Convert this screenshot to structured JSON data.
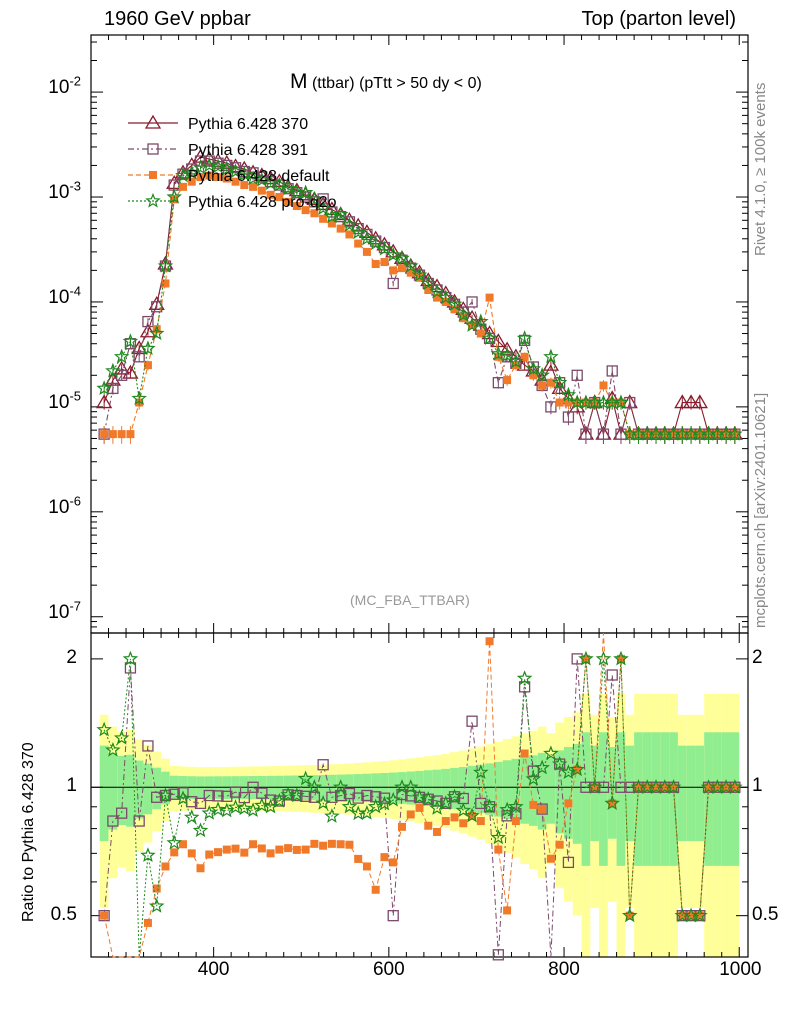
{
  "header": {
    "left": "1960 GeV ppbar",
    "right": "Top (parton level)",
    "rivet": "Rivet 4.1.0, ≥ 100k events",
    "mcplots": "mcplots.cern.ch [arXiv:2401.10621]",
    "watermark": "(MC_FBA_TTBAR)"
  },
  "colors": {
    "s370": "#8b1a2b",
    "s391": "#7b4a6a",
    "default": "#f07a2a",
    "proq2o": "#1e8a1e",
    "band_inner": "#90ee90",
    "band_outer": "#ffff99"
  },
  "chart_data": {
    "type": "line",
    "title_main": "M",
    "title_sub": "(ttbar) (pTtt > 50 dy < 0)",
    "xlabel": "",
    "ylabel": "",
    "ratio_ylabel": "Ratio to Pythia 6.428 370",
    "xlim": [
      260,
      1010
    ],
    "ylim": [
      7e-08,
      0.035
    ],
    "ratio_ylim": [
      0.4,
      2.3
    ],
    "xticks": [
      400,
      600,
      800,
      1000
    ],
    "yticks_main": [
      {
        "base": "10",
        "exp": "-2",
        "value": 0.01
      },
      {
        "base": "10",
        "exp": "-3",
        "value": 0.001
      },
      {
        "base": "10",
        "exp": "-4",
        "value": 0.0001
      },
      {
        "base": "10",
        "exp": "-5",
        "value": 1e-05
      },
      {
        "base": "10",
        "exp": "-6",
        "value": 1e-06
      },
      {
        "base": "10",
        "exp": "-7",
        "value": 1e-07
      }
    ],
    "yticks_ratio": [
      {
        "label": "0.5",
        "value": 0.5
      },
      {
        "label": "1",
        "value": 1
      },
      {
        "label": "2",
        "value": 2
      }
    ],
    "legend": [
      {
        "label": "Pythia 6.428 370",
        "key": "s370"
      },
      {
        "label": "Pythia 6.428 391",
        "key": "s391"
      },
      {
        "label": "Pythia 6.428 default",
        "key": "default"
      },
      {
        "label": "Pythia 6.428 pro-q2o",
        "key": "proq2o"
      }
    ],
    "x": [
      275,
      285,
      295,
      305,
      315,
      325,
      335,
      345,
      355,
      365,
      375,
      385,
      395,
      405,
      415,
      425,
      435,
      445,
      455,
      465,
      475,
      485,
      495,
      505,
      515,
      525,
      535,
      545,
      555,
      565,
      575,
      585,
      595,
      605,
      615,
      625,
      635,
      645,
      655,
      665,
      675,
      685,
      695,
      705,
      715,
      725,
      735,
      745,
      755,
      765,
      775,
      785,
      795,
      805,
      815,
      825,
      835,
      845,
      855,
      865,
      875,
      885,
      895,
      905,
      915,
      925,
      935,
      945,
      955,
      965,
      975,
      985,
      995
    ],
    "series": [
      {
        "name": "Pythia 6.428 370",
        "key": "s370",
        "values": [
          1.1e-05,
          1.8e-05,
          2.3e-05,
          2.1e-05,
          3.6e-05,
          5.2e-05,
          9.5e-05,
          0.00023,
          0.00135,
          0.0017,
          0.002,
          0.0024,
          0.0023,
          0.0022,
          0.0021,
          0.00195,
          0.00185,
          0.0017,
          0.0016,
          0.0015,
          0.0014,
          0.00125,
          0.00115,
          0.00105,
          0.00095,
          0.00085,
          0.00076,
          0.00068,
          0.0006,
          0.00053,
          0.00046,
          0.0004,
          0.00035,
          0.0003,
          0.00026,
          0.00022,
          0.00019,
          0.00016,
          0.00014,
          0.00012,
          0.0001,
          8.5e-05,
          7e-05,
          6e-05,
          5e-05,
          4.2e-05,
          3.5e-05,
          3e-05,
          2.5e-05,
          2.2e-05,
          1.8e-05,
          2.5e-05,
          1.5e-05,
          1.2e-05,
          1e-05,
          5.5e-06,
          1.1e-05,
          5.5e-06,
          1.2e-05,
          5.5e-06,
          1.1e-05,
          5.5e-06,
          5.5e-06,
          5.5e-06,
          5.5e-06,
          5.5e-06,
          1.1e-05,
          1.1e-05,
          1.1e-05,
          5.5e-06,
          5.5e-06,
          5.5e-06,
          5.5e-06
        ]
      },
      {
        "name": "Pythia 6.428 391",
        "key": "s391",
        "values": [
          5.5e-06,
          1.5e-05,
          2e-05,
          4e-05,
          3e-05,
          6.5e-05,
          9e-05,
          0.00022,
          0.0013,
          0.00165,
          0.00185,
          0.0022,
          0.0022,
          0.0021,
          0.002,
          0.0019,
          0.00175,
          0.0017,
          0.00155,
          0.0014,
          0.0013,
          0.0012,
          0.0011,
          0.001,
          0.0009,
          0.00096,
          0.00072,
          0.00065,
          0.00058,
          0.0005,
          0.00044,
          0.00038,
          0.00033,
          0.00015,
          0.00025,
          0.00021,
          0.00018,
          0.00015,
          0.00013,
          0.00011,
          9.5e-05,
          8e-05,
          0.0001,
          5.5e-05,
          4.5e-05,
          1.7e-05,
          3e-05,
          2.6e-05,
          4.3e-05,
          2.4e-05,
          1.6e-05,
          1e-05,
          1.7e-05,
          8e-06,
          2e-05,
          5.5e-06,
          1.1e-05,
          5.5e-06,
          2.2e-05,
          5.5e-06,
          1.1e-05,
          5.5e-06,
          5.5e-06,
          5.5e-06,
          5.5e-06,
          5.5e-06,
          5.5e-06,
          5.5e-06,
          5.5e-06,
          5.5e-06,
          5.5e-06,
          5.5e-06,
          5.5e-06
        ]
      },
      {
        "name": "Pythia 6.428 default",
        "key": "default",
        "values": [
          5.5e-06,
          5.5e-06,
          5.5e-06,
          5.5e-06,
          1.1e-05,
          2.5e-05,
          5.5e-05,
          0.00015,
          0.00095,
          0.00125,
          0.0014,
          0.00155,
          0.0016,
          0.00155,
          0.0015,
          0.0014,
          0.0013,
          0.00125,
          0.00115,
          0.00105,
          0.001,
          0.0009,
          0.00082,
          0.00075,
          0.0007,
          0.00062,
          0.00056,
          0.0005,
          0.00044,
          0.00036,
          0.0003,
          0.00023,
          0.00024,
          0.0002,
          0.00021,
          0.00019,
          0.00017,
          0.00013,
          0.00011,
          0.0001,
          8.5e-05,
          7e-05,
          6e-05,
          5e-05,
          0.00011,
          3e-05,
          1.8e-05,
          2.5e-05,
          3e-05,
          2e-05,
          1.6e-05,
          1.7e-05,
          1.1e-05,
          1.1e-05,
          1.1e-05,
          1.1e-05,
          1.1e-05,
          1.6e-05,
          1.1e-05,
          1.1e-05,
          5.5e-06,
          5.5e-06,
          5.5e-06,
          5.5e-06,
          5.5e-06,
          5.5e-06,
          5.5e-06,
          5.5e-06,
          5.5e-06,
          5.5e-06,
          5.5e-06,
          5.5e-06,
          5.5e-06
        ]
      },
      {
        "name": "Pythia 6.428 pro-q2o",
        "key": "proq2o",
        "values": [
          1.5e-05,
          2.2e-05,
          3e-05,
          4.2e-05,
          1.2e-05,
          3.6e-05,
          5e-05,
          0.00022,
          0.001,
          0.0016,
          0.0017,
          0.0019,
          0.002,
          0.00195,
          0.00185,
          0.00175,
          0.00165,
          0.0015,
          0.00145,
          0.00135,
          0.0013,
          0.0012,
          0.0011,
          0.0011,
          0.00095,
          0.00078,
          0.00065,
          0.00068,
          0.00054,
          0.00046,
          0.0004,
          0.00036,
          0.00032,
          0.00028,
          0.00026,
          0.00022,
          0.00018,
          0.00015,
          0.000125,
          0.00011,
          9.5e-05,
          7.5e-05,
          6e-05,
          6.5e-05,
          4.5e-05,
          3.2e-05,
          3.1e-05,
          2.7e-05,
          4.5e-05,
          2.3e-05,
          2e-05,
          3e-05,
          1.7e-05,
          1.3e-05,
          1.1e-05,
          1.1e-05,
          1.1e-05,
          1.1e-05,
          1.1e-05,
          1.1e-05,
          5.5e-06,
          5.5e-06,
          5.5e-06,
          5.5e-06,
          5.5e-06,
          5.5e-06,
          5.5e-06,
          5.5e-06,
          5.5e-06,
          5.5e-06,
          5.5e-06,
          5.5e-06,
          5.5e-06
        ]
      }
    ]
  }
}
